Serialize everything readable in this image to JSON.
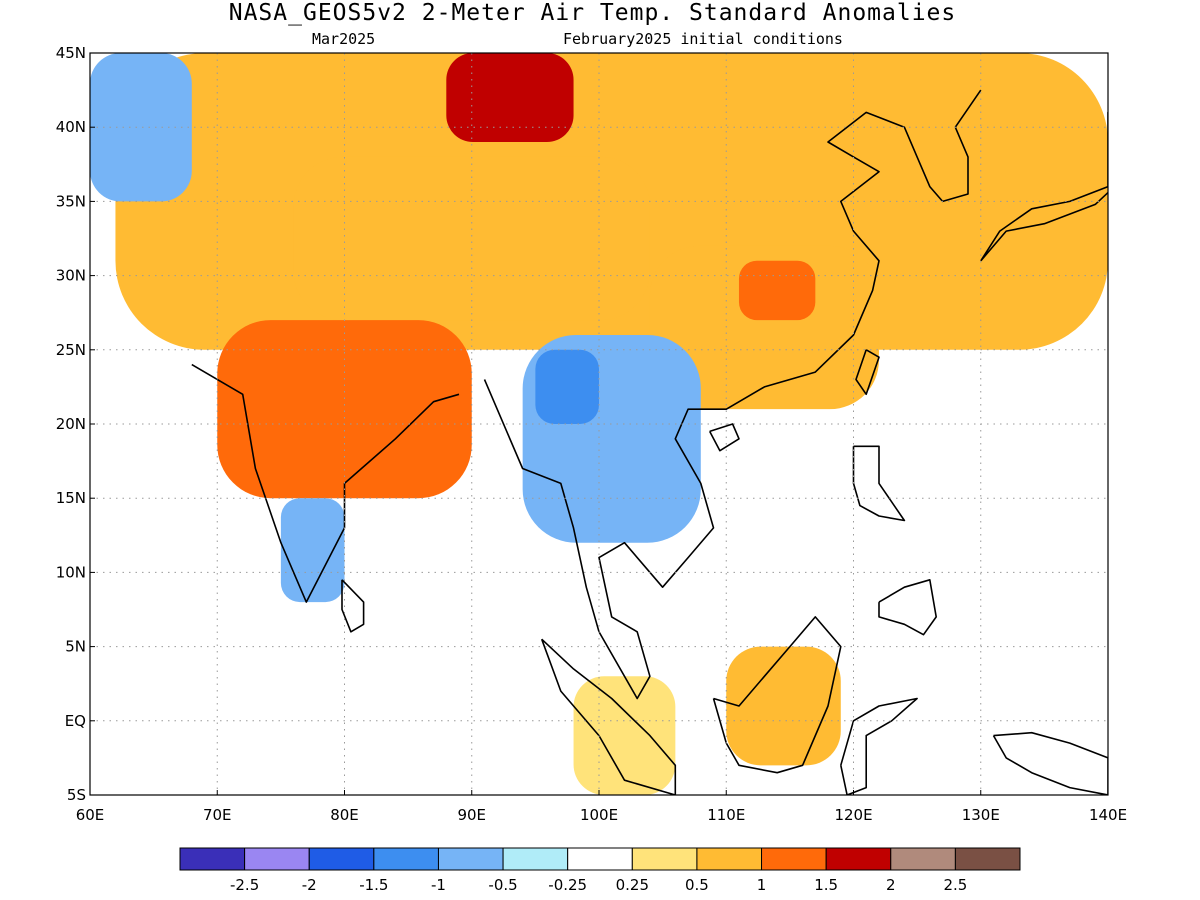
{
  "title": "NASA_GEOS5v2 2-Meter Air Temp. Standard Anomalies",
  "subtitle_left": "Mar2025",
  "subtitle_right": "February2025 initial conditions",
  "map": {
    "lon_range": [
      60,
      140
    ],
    "lat_range": [
      -5,
      45
    ],
    "grid": "dotted",
    "lat_ticks": [
      {
        "value": 45,
        "label": "45N"
      },
      {
        "value": 40,
        "label": "40N"
      },
      {
        "value": 35,
        "label": "35N"
      },
      {
        "value": 30,
        "label": "30N"
      },
      {
        "value": 25,
        "label": "25N"
      },
      {
        "value": 20,
        "label": "20N"
      },
      {
        "value": 15,
        "label": "15N"
      },
      {
        "value": 10,
        "label": "10N"
      },
      {
        "value": 5,
        "label": "5N"
      },
      {
        "value": 0,
        "label": "EQ"
      },
      {
        "value": -5,
        "label": "5S"
      }
    ],
    "lon_ticks": [
      {
        "value": 60,
        "label": "60E"
      },
      {
        "value": 70,
        "label": "70E"
      },
      {
        "value": 80,
        "label": "80E"
      },
      {
        "value": 90,
        "label": "90E"
      },
      {
        "value": 100,
        "label": "100E"
      },
      {
        "value": 110,
        "label": "110E"
      },
      {
        "value": 120,
        "label": "120E"
      },
      {
        "value": 130,
        "label": "130E"
      },
      {
        "value": 140,
        "label": "140E"
      }
    ]
  },
  "colorbar": {
    "colors": [
      "#3a2fb8",
      "#9a86f2",
      "#1f5ce6",
      "#3d8ef0",
      "#76b4f6",
      "#b0ecf8",
      "#ffffff",
      "#ffe37a",
      "#ffbb33",
      "#ff6a0a",
      "#c00000",
      "#b08a7c",
      "#7a5044"
    ],
    "labels": [
      "-2.5",
      "-2",
      "-1.5",
      "-1",
      "-0.5",
      "-0.25",
      "0.25",
      "0.5",
      "1",
      "1.5",
      "2",
      "2.5"
    ]
  },
  "regions": [
    {
      "name": "north-china-mongolia-warm",
      "color": "#ffbb33",
      "lon": [
        62,
        140
      ],
      "lat": [
        25,
        45
      ]
    },
    {
      "name": "tibet-warm",
      "color": "#ffbb33",
      "lon": [
        76,
        104
      ],
      "lat": [
        27,
        38
      ]
    },
    {
      "name": "india-warm",
      "color": "#ff6a0a",
      "lon": [
        70,
        90
      ],
      "lat": [
        15,
        27
      ]
    },
    {
      "name": "mongolia-strong-warm",
      "color": "#c00000",
      "lon": [
        88,
        98
      ],
      "lat": [
        39,
        45
      ]
    },
    {
      "name": "southeast-china-warm",
      "color": "#ffbb33",
      "lon": [
        104,
        122
      ],
      "lat": [
        21,
        32
      ]
    },
    {
      "name": "central-china-warm-core",
      "color": "#ff6a0a",
      "lon": [
        111,
        117
      ],
      "lat": [
        27,
        31
      ]
    },
    {
      "name": "southeast-asia-cold",
      "color": "#76b4f6",
      "lon": [
        94,
        108
      ],
      "lat": [
        12,
        26
      ]
    },
    {
      "name": "myanmar-cold-core",
      "color": "#3d8ef0",
      "lon": [
        95,
        100
      ],
      "lat": [
        20,
        25
      ]
    },
    {
      "name": "south-india-cold",
      "color": "#76b4f6",
      "lon": [
        75,
        80
      ],
      "lat": [
        8,
        15
      ]
    },
    {
      "name": "central-asia-cold",
      "color": "#76b4f6",
      "lon": [
        60,
        68
      ],
      "lat": [
        35,
        45
      ]
    },
    {
      "name": "borneo-warm",
      "color": "#ffbb33",
      "lon": [
        110,
        119
      ],
      "lat": [
        -3,
        5
      ]
    },
    {
      "name": "sumatra-warm",
      "color": "#ffe37a",
      "lon": [
        98,
        106
      ],
      "lat": [
        -5,
        3
      ]
    }
  ]
}
